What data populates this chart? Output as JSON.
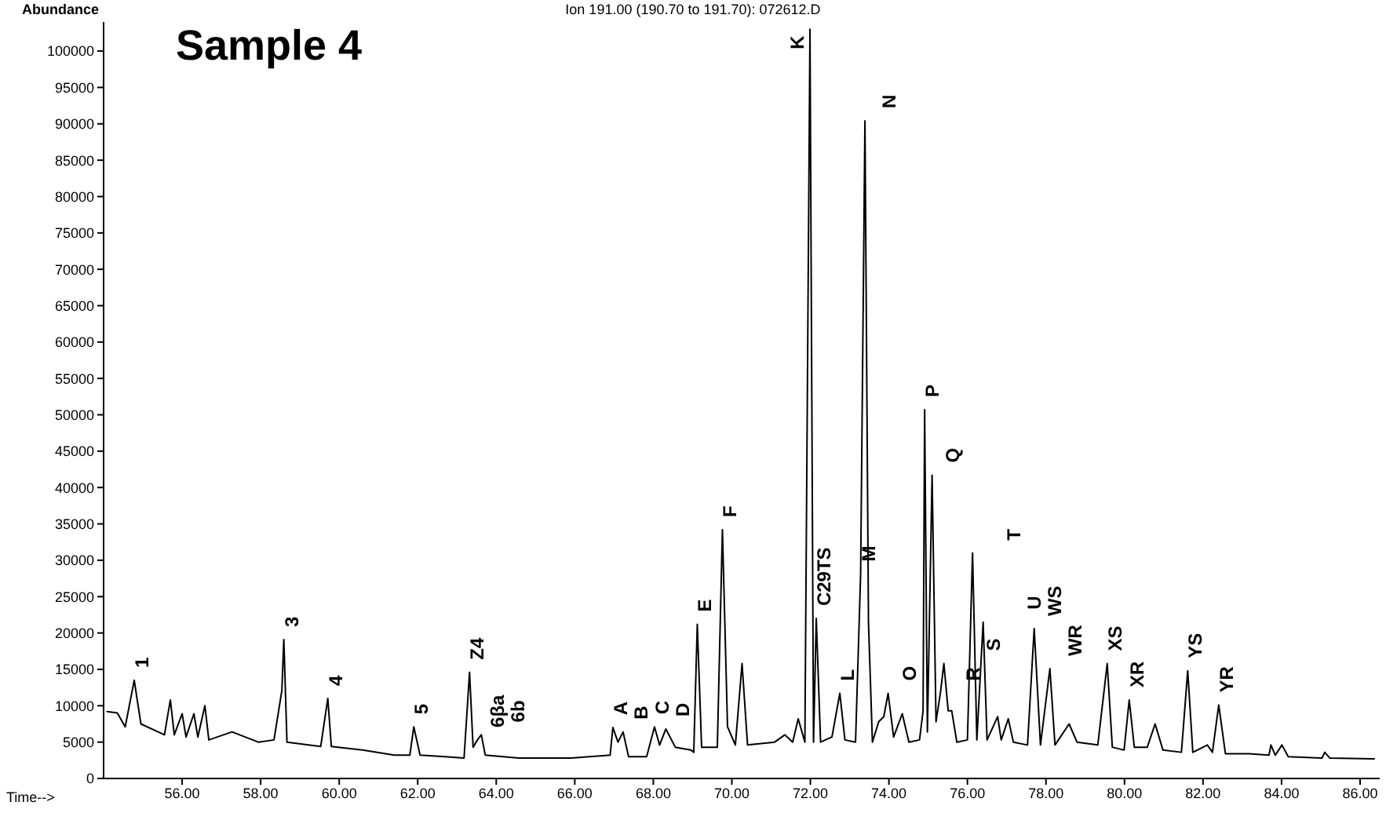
{
  "chart_data": {
    "type": "line",
    "title": "Ion 191.00 (190.70 to 191.70): 072612.D",
    "xlabel": "Time-->",
    "ylabel": "Abundance",
    "xlim": [
      54,
      86.5
    ],
    "ylim": [
      0,
      104000
    ],
    "xticks": [
      {
        "value": 56,
        "label": "56.00"
      },
      {
        "value": 58,
        "label": "58.00"
      },
      {
        "value": 60,
        "label": "60.00"
      },
      {
        "value": 62,
        "label": "62.00"
      },
      {
        "value": 64,
        "label": "64.00"
      },
      {
        "value": 66,
        "label": "66.00"
      },
      {
        "value": 68,
        "label": "68.00"
      },
      {
        "value": 70,
        "label": "70.00"
      },
      {
        "value": 72,
        "label": "72.00"
      },
      {
        "value": 74,
        "label": "74.00"
      },
      {
        "value": 76,
        "label": "76.00"
      },
      {
        "value": 78,
        "label": "78.00"
      },
      {
        "value": 80,
        "label": "80.00"
      },
      {
        "value": 82,
        "label": "82.00"
      },
      {
        "value": 84,
        "label": "84.00"
      },
      {
        "value": 86,
        "label": "86.00"
      }
    ],
    "yticks": [
      0,
      5000,
      10000,
      15000,
      20000,
      25000,
      30000,
      35000,
      40000,
      45000,
      50000,
      55000,
      60000,
      65000,
      70000,
      75000,
      80000,
      85000,
      90000,
      95000,
      100000
    ],
    "grid": false,
    "series": [
      {
        "color": "#000000",
        "x": [
          54.09,
          54.35,
          54.55,
          54.78,
          54.95,
          55.55,
          55.7,
          55.8,
          56.0,
          56.1,
          56.3,
          56.4,
          56.58,
          56.68,
          57.27,
          57.94,
          58.34,
          58.54,
          58.59,
          58.67,
          59.53,
          59.71,
          59.8,
          60.6,
          61.4,
          61.8,
          61.9,
          62.06,
          62.7,
          63.18,
          63.32,
          63.41,
          63.52,
          63.62,
          63.72,
          64.58,
          65.9,
          66.9,
          66.97,
          67.1,
          67.23,
          67.37,
          67.83,
          68.03,
          68.16,
          68.32,
          68.56,
          68.96,
          69.03,
          69.12,
          69.23,
          69.63,
          69.76,
          69.89,
          70.09,
          70.26,
          70.4,
          71.09,
          71.35,
          71.55,
          71.69,
          71.86,
          71.99,
          72.08,
          72.15,
          72.26,
          72.55,
          72.75,
          72.88,
          73.15,
          73.28,
          73.39,
          73.48,
          73.58,
          73.74,
          73.87,
          73.98,
          74.12,
          74.34,
          74.51,
          74.78,
          74.87,
          74.91,
          74.98,
          75.1,
          75.2,
          75.31,
          75.4,
          75.51,
          75.6,
          75.73,
          76.0,
          76.13,
          76.24,
          76.4,
          76.5,
          76.77,
          76.86,
          77.04,
          77.17,
          77.53,
          77.7,
          77.86,
          78.1,
          78.23,
          78.59,
          78.79,
          79.32,
          79.56,
          79.69,
          79.99,
          80.12,
          80.25,
          80.58,
          80.78,
          80.98,
          81.45,
          81.61,
          81.74,
          82.11,
          82.24,
          82.4,
          82.57,
          83.17,
          83.68,
          83.73,
          83.84,
          84.01,
          84.17,
          85.03,
          85.1,
          85.23,
          86.36
        ],
        "values": [
          9200,
          9000,
          7100,
          13500,
          7500,
          6000,
          10800,
          6000,
          8900,
          5700,
          8900,
          5700,
          10000,
          5300,
          6400,
          5000,
          5300,
          12100,
          19100,
          5000,
          4400,
          11000,
          4400,
          3900,
          3200,
          3200,
          7100,
          3200,
          3000,
          2800,
          14600,
          4300,
          5300,
          6000,
          3200,
          2800,
          2800,
          3200,
          7000,
          5000,
          6400,
          3000,
          3000,
          7100,
          4600,
          6800,
          4300,
          3900,
          3600,
          21200,
          4300,
          4300,
          34200,
          7100,
          4600,
          15800,
          4600,
          5000,
          6000,
          5000,
          8200,
          5000,
          103000,
          5000,
          22000,
          5000,
          5700,
          11700,
          5300,
          5000,
          28100,
          90400,
          21400,
          5000,
          7800,
          8500,
          11700,
          5700,
          8900,
          5000,
          5300,
          9300,
          50700,
          6400,
          41700,
          7800,
          11700,
          15800,
          9300,
          9300,
          5000,
          5300,
          31000,
          5300,
          21500,
          5300,
          8500,
          5300,
          8200,
          5000,
          4600,
          20600,
          4600,
          15100,
          4600,
          7500,
          5000,
          4600,
          15800,
          4300,
          3900,
          10800,
          4300,
          4300,
          7500,
          3900,
          3600,
          14800,
          3600,
          4600,
          3600,
          10100,
          3400,
          3400,
          3200,
          4600,
          3200,
          4600,
          3000,
          2800,
          3600,
          2800,
          2700
        ]
      }
    ],
    "annotations": [
      "Sample 4",
      {
        "text": "1",
        "x": 54.78,
        "y": 13500
      },
      {
        "text": "3",
        "x": 58.59,
        "y": 19100
      },
      {
        "text": "4",
        "x": 59.71,
        "y": 11000
      },
      {
        "text": "5",
        "x": 61.9,
        "y": 7100
      },
      {
        "text": "Z4",
        "x": 63.32,
        "y": 14600
      },
      {
        "text": "6βa",
        "x": 63.52,
        "y": 5300
      },
      {
        "text": "6b",
        "x": 63.62,
        "y": 6000
      },
      {
        "text": "A",
        "x": 66.97,
        "y": 7000
      },
      {
        "text": "B",
        "x": 67.23,
        "y": 6400
      },
      {
        "text": "C",
        "x": 68.03,
        "y": 7100
      },
      {
        "text": "D",
        "x": 68.32,
        "y": 6800
      },
      {
        "text": "E",
        "x": 69.12,
        "y": 21200
      },
      {
        "text": "F",
        "x": 69.76,
        "y": 34200
      },
      {
        "text": "K",
        "x": 71.99,
        "y": 103000
      },
      {
        "text": "C29TS",
        "x": 72.15,
        "y": 22000
      },
      {
        "text": "L",
        "x": 72.75,
        "y": 11700
      },
      {
        "text": "M",
        "x": 73.28,
        "y": 28100
      },
      {
        "text": "N",
        "x": 73.39,
        "y": 90400
      },
      {
        "text": "O",
        "x": 73.98,
        "y": 11700
      },
      {
        "text": "P",
        "x": 74.91,
        "y": 50700
      },
      {
        "text": "Q",
        "x": 75.1,
        "y": 41700
      },
      {
        "text": "R",
        "x": 75.31,
        "y": 11700
      },
      {
        "text": "S",
        "x": 75.4,
        "y": 15800
      },
      {
        "text": "T",
        "x": 76.13,
        "y": 31000
      },
      {
        "text": "U",
        "x": 76.4,
        "y": 21500
      },
      {
        "text": "WS",
        "x": 77.7,
        "y": 20600
      },
      {
        "text": "WR",
        "x": 78.1,
        "y": 15100
      },
      {
        "text": "XS",
        "x": 79.56,
        "y": 15800
      },
      {
        "text": "XR",
        "x": 80.12,
        "y": 10800
      },
      {
        "text": "YS",
        "x": 81.61,
        "y": 14800
      },
      {
        "text": "YR",
        "x": 82.4,
        "y": 10100
      }
    ]
  }
}
